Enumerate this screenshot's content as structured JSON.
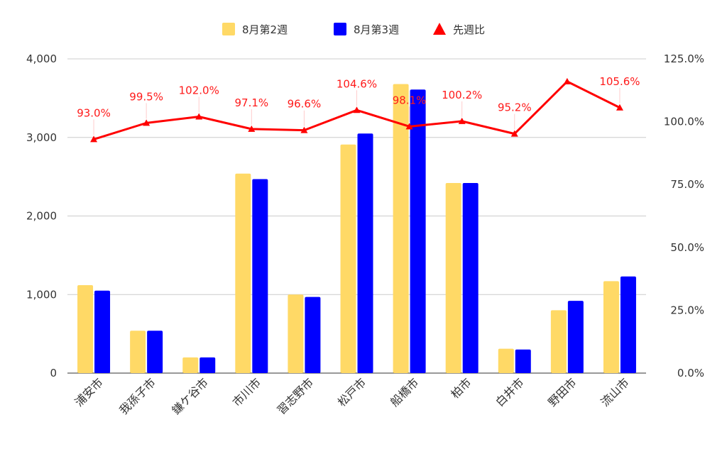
{
  "chart_data": {
    "type": "bar",
    "categories": [
      "浦安市",
      "我孫子市",
      "鎌ケ谷市",
      "市川市",
      "習志野市",
      "松戸市",
      "船橋市",
      "柏市",
      "白井市",
      "野田市",
      "流山市"
    ],
    "series": [
      {
        "name": "8月第2週",
        "type": "bar",
        "axis": "left",
        "color": "#ffd966",
        "values": [
          1120,
          540,
          200,
          2540,
          1000,
          2910,
          3680,
          2420,
          310,
          800,
          1170
        ]
      },
      {
        "name": "8月第3週",
        "type": "bar",
        "axis": "left",
        "color": "#0000ff",
        "values": [
          1050,
          540,
          200,
          2470,
          970,
          3050,
          3610,
          2420,
          300,
          920,
          1230
        ]
      },
      {
        "name": "先週比",
        "type": "line",
        "axis": "right",
        "color": "#ff0000",
        "marker": "triangle",
        "values": [
          93.0,
          99.5,
          102.0,
          97.1,
          96.6,
          104.6,
          98.1,
          100.2,
          95.2,
          116.0,
          105.6
        ],
        "labels": [
          "93.0%",
          "99.5%",
          "102.0%",
          "97.1%",
          "96.6%",
          "104.6%",
          "98.1%",
          "100.2%",
          "95.2%",
          "",
          "105.6%"
        ]
      }
    ],
    "left_axis": {
      "ylim": [
        0,
        4000
      ],
      "ticks": [
        0,
        1000,
        2000,
        3000,
        4000
      ],
      "tick_labels": [
        "0",
        "1,000",
        "2,000",
        "3,000",
        "4,000"
      ]
    },
    "right_axis": {
      "ylim": [
        0,
        125
      ],
      "ticks": [
        0,
        25,
        50,
        75,
        100,
        125
      ],
      "tick_labels": [
        "0.0%",
        "25.0%",
        "50.0%",
        "75.0%",
        "100.0%",
        "125.0%"
      ]
    },
    "grid": true,
    "legend": "top-center"
  }
}
